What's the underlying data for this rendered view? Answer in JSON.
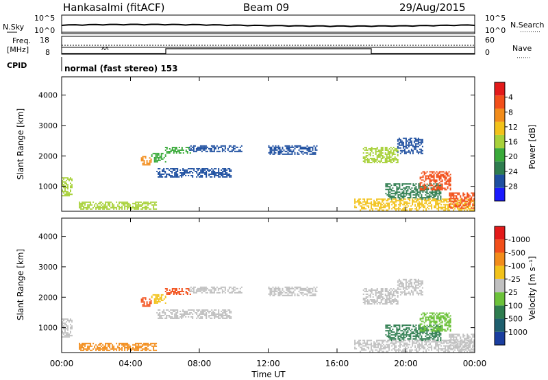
{
  "header": {
    "station": "Hankasalmi (fitACF)",
    "beam": "Beam 09",
    "date": "29/Aug/2015"
  },
  "noise_panel": {
    "left_label": "N.Sky",
    "right_label": "N.Search",
    "left_ticks": [
      "10^5",
      "10^0"
    ],
    "right_ticks": [
      "10^5",
      "10^0"
    ]
  },
  "freq_panel": {
    "left_label_line1": "Freq.",
    "left_label_line2": "[MHz]",
    "left_ticks": [
      "18",
      "8"
    ],
    "right_ticks": [
      "60",
      "0"
    ],
    "right_label": "Nave",
    "cpid_label": "CPID",
    "cpid_text": "normal (fast stereo) 153"
  },
  "x_axis": {
    "label": "Time UT",
    "ticks": [
      "00:00",
      "04:00",
      "08:00",
      "12:00",
      "16:00",
      "20:00",
      "00:00"
    ],
    "range_hours": [
      0,
      24
    ]
  },
  "power_colorbar": {
    "label": "Power [dB]",
    "ticks": [
      "4",
      "8",
      "12",
      "16",
      "20",
      "24",
      "28"
    ],
    "colors": [
      "#1a1aff",
      "#1e4fa0",
      "#2e7d4f",
      "#3aaa3a",
      "#a8d13a",
      "#f2c21a",
      "#f28c1a",
      "#f24f1a",
      "#e31a1a"
    ]
  },
  "velocity_colorbar": {
    "label": "Velocity [m s⁻¹]",
    "ticks": [
      "1000",
      "500",
      "100",
      "25",
      "-25",
      "-100",
      "-500",
      "-1000"
    ],
    "colors": [
      "#1a3ea0",
      "#1e5f6e",
      "#2e7d4f",
      "#6cc23a",
      "#c0c0c0",
      "#f2c21a",
      "#f28c1a",
      "#f24f1a",
      "#e31a1a"
    ]
  },
  "chart_data": {
    "type": "heatmap",
    "y_label": "Slant Range [km]",
    "y_ticks": [
      "1000",
      "2000",
      "3000",
      "4000"
    ],
    "ylim_km": [
      180,
      4600
    ],
    "regions": [
      {
        "t0": 0.0,
        "t1": 0.6,
        "r0": 700,
        "r1": 1300,
        "power_level": 4,
        "vel_level": 4
      },
      {
        "t0": 1.0,
        "t1": 5.5,
        "r0": 250,
        "r1": 500,
        "power_level": 4,
        "vel_level": 6
      },
      {
        "t0": 4.6,
        "t1": 5.2,
        "r0": 1700,
        "r1": 2000,
        "power_level": 6,
        "vel_level": 7
      },
      {
        "t0": 5.2,
        "t1": 6.0,
        "r0": 1800,
        "r1": 2100,
        "power_level": 3,
        "vel_level": 5
      },
      {
        "t0": 6.0,
        "t1": 7.5,
        "r0": 2100,
        "r1": 2300,
        "power_level": 3,
        "vel_level": 7
      },
      {
        "t0": 7.4,
        "t1": 10.5,
        "r0": 2150,
        "r1": 2350,
        "power_level": 1,
        "vel_level": 4
      },
      {
        "t0": 5.5,
        "t1": 9.8,
        "r0": 1300,
        "r1": 1600,
        "power_level": 1,
        "vel_level": 4
      },
      {
        "t0": 12.0,
        "t1": 14.8,
        "r0": 2050,
        "r1": 2350,
        "power_level": 1,
        "vel_level": 4
      },
      {
        "t0": 17.5,
        "t1": 19.5,
        "r0": 1800,
        "r1": 2300,
        "power_level": 4,
        "vel_level": 4
      },
      {
        "t0": 19.5,
        "t1": 21.0,
        "r0": 2100,
        "r1": 2600,
        "power_level": 1,
        "vel_level": 4
      },
      {
        "t0": 18.8,
        "t1": 22.0,
        "r0": 600,
        "r1": 1100,
        "power_level": 2,
        "vel_level": 2
      },
      {
        "t0": 20.8,
        "t1": 22.6,
        "r0": 900,
        "r1": 1500,
        "power_level": 7,
        "vel_level": 3
      },
      {
        "t0": 17.0,
        "t1": 24.0,
        "r0": 200,
        "r1": 600,
        "power_level": 5,
        "vel_level": 4
      },
      {
        "t0": 22.5,
        "t1": 24.0,
        "r0": 300,
        "r1": 800,
        "power_level": 7,
        "vel_level": 4
      }
    ]
  }
}
